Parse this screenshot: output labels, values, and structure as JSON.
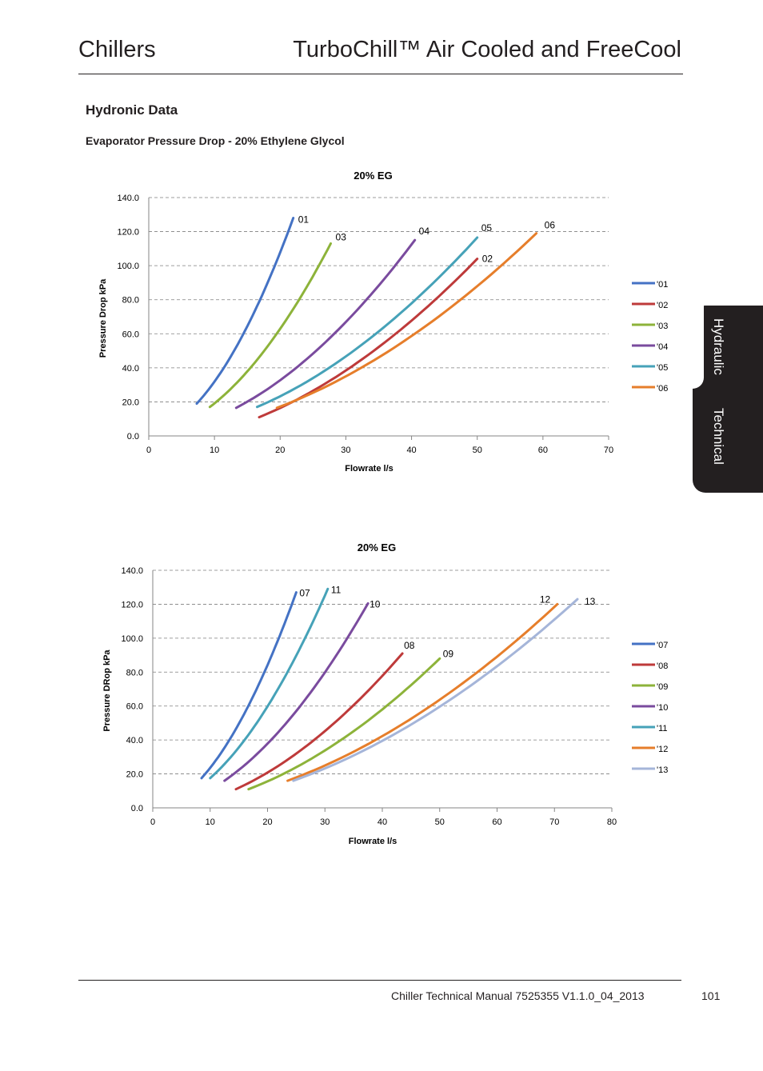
{
  "header": {
    "left_title": "Chillers",
    "right_title": "TurboChill™ Air Cooled and FreeCool"
  },
  "section_title": "Hydronic Data",
  "subtitle": "Evaporator Pressure Drop - 20% Ethylene Glycol",
  "side_tab": {
    "primary": "Hydraulic",
    "secondary": "Technical"
  },
  "footer": {
    "text": "Chiller Technical Manual 7525355 V1.1.0_04_2013",
    "page_number": "101"
  },
  "chart_data": [
    {
      "type": "line",
      "title": "20% EG",
      "xlabel": "Flowrate l/s",
      "ylabel": "Pressure Drop kPa",
      "xlim": [
        0,
        70
      ],
      "ylim": [
        0,
        140
      ],
      "xticks": [
        "0",
        "10",
        "20",
        "30",
        "40",
        "50",
        "60",
        "70"
      ],
      "yticks": [
        "0.0",
        "20.0",
        "40.0",
        "60.0",
        "80.0",
        "100.0",
        "120.0",
        "140.0"
      ],
      "grid": "horizontal-dashed",
      "legend_position": "right",
      "series": [
        {
          "name": "'01",
          "label": "01",
          "color": "#4472c4",
          "x_start": 7.3,
          "y_start": 19.0,
          "x_end": 22.0,
          "y_end": 128.0
        },
        {
          "name": "'02",
          "label": "02",
          "color": "#be3a3a",
          "x_start": 16.8,
          "y_start": 11.0,
          "x_end": 50.0,
          "y_end": 104.0
        },
        {
          "name": "'03",
          "label": "03",
          "color": "#8db33a",
          "x_start": 9.3,
          "y_start": 17.0,
          "x_end": 27.7,
          "y_end": 113.0
        },
        {
          "name": "'04",
          "label": "04",
          "color": "#7a4b9e",
          "x_start": 13.3,
          "y_start": 16.5,
          "x_end": 40.5,
          "y_end": 115.0
        },
        {
          "name": "'05",
          "label": "05",
          "color": "#46a2b8",
          "x_start": 16.5,
          "y_start": 17.0,
          "x_end": 50.0,
          "y_end": 116.5
        },
        {
          "name": "'06",
          "label": "06",
          "color": "#e67e2b",
          "x_start": 19.5,
          "y_start": 16.5,
          "x_end": 59.0,
          "y_end": 119.0
        }
      ]
    },
    {
      "type": "line",
      "title": "20% EG",
      "xlabel": "Flowrate l/s",
      "ylabel": "Pressure DRop kPa",
      "xlim": [
        0,
        80
      ],
      "ylim": [
        0,
        140
      ],
      "xticks": [
        "0",
        "10",
        "20",
        "30",
        "40",
        "50",
        "60",
        "70",
        "80"
      ],
      "yticks": [
        "0.0",
        "20.0",
        "40.0",
        "60.0",
        "80.0",
        "100.0",
        "120.0",
        "140.0"
      ],
      "grid": "horizontal-dashed",
      "legend_position": "right",
      "series": [
        {
          "name": "'07",
          "label": "07",
          "color": "#4472c4",
          "x_start": 8.5,
          "y_start": 17.5,
          "x_end": 25.0,
          "y_end": 127.0
        },
        {
          "name": "'08",
          "label": "08",
          "color": "#be3a3a",
          "x_start": 14.5,
          "y_start": 11.0,
          "x_end": 43.5,
          "y_end": 91.0
        },
        {
          "name": "'09",
          "label": "09",
          "color": "#8db33a",
          "x_start": 16.7,
          "y_start": 11.0,
          "x_end": 50.0,
          "y_end": 88.0
        },
        {
          "name": "'10",
          "label": "10",
          "color": "#7a4b9e",
          "x_start": 12.5,
          "y_start": 16.0,
          "x_end": 37.5,
          "y_end": 120.5
        },
        {
          "name": "'11",
          "label": "11",
          "color": "#46a2b8",
          "x_start": 10.0,
          "y_start": 17.5,
          "x_end": 30.5,
          "y_end": 129.0
        },
        {
          "name": "'12",
          "label": "12",
          "color": "#e67e2b",
          "x_start": 23.5,
          "y_start": 16.0,
          "x_end": 70.5,
          "y_end": 120.0
        },
        {
          "name": "'13",
          "label": "13",
          "color": "#a5b5d9",
          "x_start": 24.5,
          "y_start": 16.0,
          "x_end": 74.0,
          "y_end": 123.0
        }
      ]
    }
  ]
}
